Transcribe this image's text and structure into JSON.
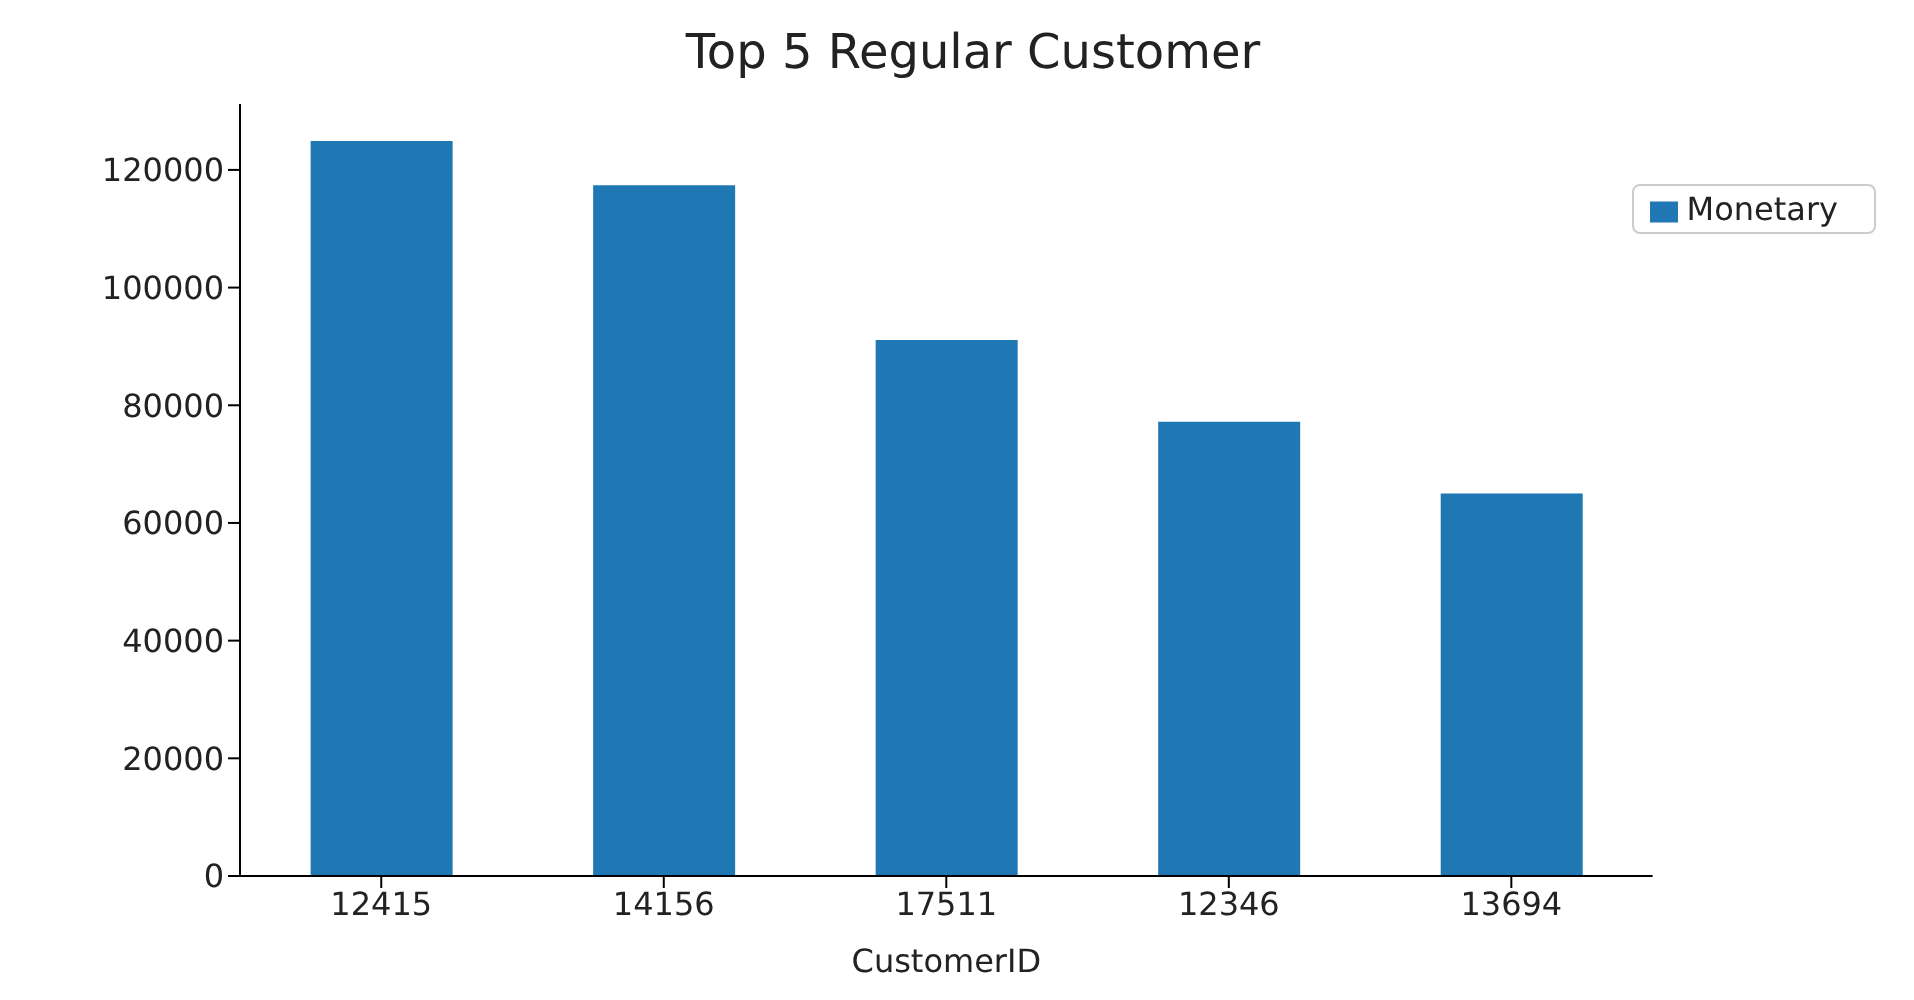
{
  "chart_data": {
    "type": "bar",
    "title": "Top 5 Regular Customer",
    "xlabel": "CustomerID",
    "categories": [
      "12415",
      "14156",
      "17511",
      "12346",
      "13694"
    ],
    "series": [
      {
        "name": "Monetary",
        "color": "#1f77b4",
        "values": [
          124900,
          117400,
          91100,
          77200,
          65000
        ]
      }
    ],
    "ylim": [
      0,
      131200
    ],
    "yticks": [
      0,
      20000,
      40000,
      60000,
      80000,
      100000,
      120000
    ],
    "grid": false,
    "legend": "top right"
  }
}
